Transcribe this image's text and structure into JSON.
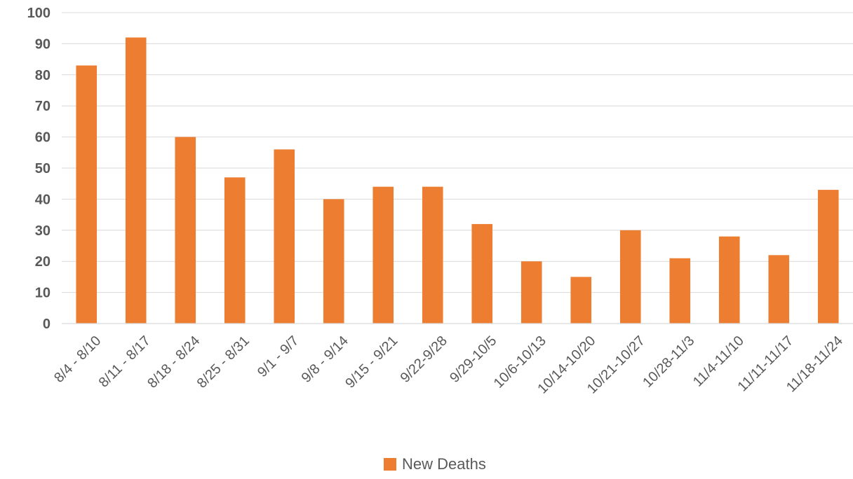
{
  "chart_data": {
    "type": "bar",
    "title": "",
    "xlabel": "",
    "ylabel": "",
    "ylim": [
      0,
      100
    ],
    "yticks": [
      0,
      10,
      20,
      30,
      40,
      50,
      60,
      70,
      80,
      90,
      100
    ],
    "categories": [
      "8/4 - 8/10",
      "8/11 - 8/17",
      "8/18 - 8/24",
      "8/25 - 8/31",
      "9/1 - 9/7",
      "9/8 - 9/14",
      "9/15 - 9/21",
      "9/22-9/28",
      "9/29-10/5",
      "10/6-10/13",
      "10/14-10/20",
      "10/21-10/27",
      "10/28-11/3",
      "11/4-11/10",
      "11/11-11/17",
      "11/18-11/24"
    ],
    "series": [
      {
        "name": "New Deaths",
        "color": "#ed7d31",
        "values": [
          83,
          92,
          60,
          47,
          56,
          40,
          44,
          44,
          32,
          20,
          15,
          30,
          21,
          28,
          22,
          43
        ]
      }
    ],
    "grid": true,
    "legend_position": "bottom"
  },
  "legend": {
    "label": "New Deaths"
  }
}
